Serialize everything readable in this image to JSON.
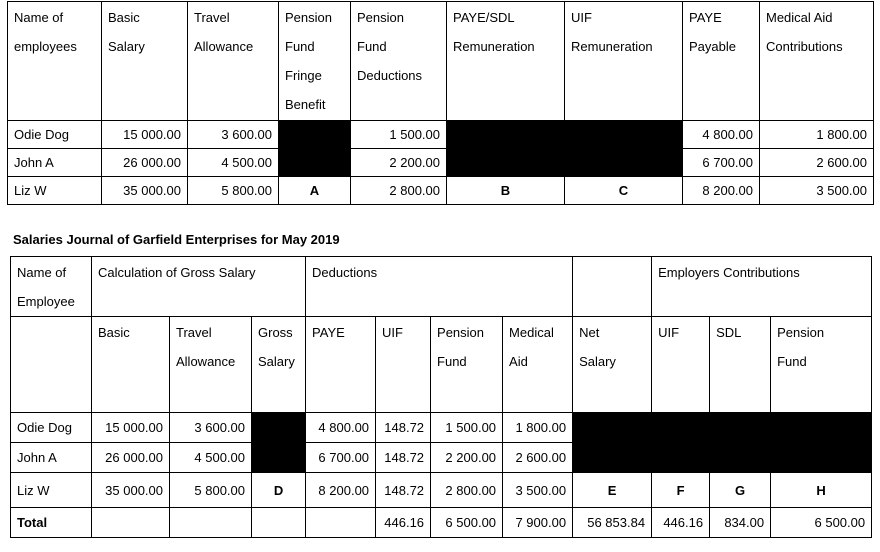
{
  "table1": {
    "headers": [
      [
        "Name of",
        "employees"
      ],
      [
        "Basic",
        "Salary"
      ],
      [
        "Travel",
        "Allowance"
      ],
      [
        "Pension",
        "Fund",
        "Fringe",
        "Benefit"
      ],
      [
        "Pension",
        "Fund",
        "Deductions"
      ],
      [
        "PAYE/SDL",
        "Remuneration"
      ],
      [
        "UIF",
        "Remuneration"
      ],
      [
        "PAYE",
        "Payable"
      ],
      [
        "Medical Aid",
        "Contributions"
      ]
    ],
    "rows": [
      {
        "name": "Odie Dog",
        "basic": "15 000.00",
        "travel": "3 600.00",
        "pff": "",
        "pfd": "1 500.00",
        "paye_sdl": "",
        "uif": "",
        "paye": "4 800.00",
        "med": "1 800.00"
      },
      {
        "name": "John A",
        "basic": "26 000.00",
        "travel": "4 500.00",
        "pff": "",
        "pfd": "2 200.00",
        "paye_sdl": "",
        "uif": "",
        "paye": "6 700.00",
        "med": "2 600.00"
      },
      {
        "name": "Liz W",
        "basic": "35 000.00",
        "travel": "5 800.00",
        "pff": "A",
        "pfd": "2 800.00",
        "paye_sdl": "B",
        "uif": "C",
        "paye": "8 200.00",
        "med": "3 500.00"
      }
    ]
  },
  "journal_title": "Salaries Journal of Garfield Enterprises for May 2019",
  "table2": {
    "group_headers": {
      "name": [
        "Name of",
        "Employee"
      ],
      "calc": "Calculation of Gross Salary",
      "deductions": "Deductions",
      "employers": "Employers Contributions"
    },
    "sub_headers": {
      "basic": [
        "Basic"
      ],
      "travel": [
        "Travel",
        "Allowance"
      ],
      "gross": [
        "Gross",
        "Salary"
      ],
      "paye": [
        "PAYE"
      ],
      "uif": [
        "UIF"
      ],
      "pension": [
        "Pension",
        "Fund"
      ],
      "medical": [
        "Medical",
        "Aid"
      ],
      "net": [
        "Net",
        "Salary"
      ],
      "er_uif": [
        "UIF"
      ],
      "er_sdl": [
        "SDL"
      ],
      "er_pension": [
        "Pension",
        "Fund"
      ]
    },
    "rows": [
      {
        "name": "Odie Dog",
        "basic": "15 000.00",
        "travel": "3 600.00",
        "gross": "",
        "paye": "4 800.00",
        "uif": "148.72",
        "pension": "1 500.00",
        "medical": "1 800.00",
        "net": "",
        "er_uif": "",
        "er_sdl": "",
        "er_pension": ""
      },
      {
        "name": "John A",
        "basic": "26 000.00",
        "travel": "4 500.00",
        "gross": "",
        "paye": "6 700.00",
        "uif": "148.72",
        "pension": "2 200.00",
        "medical": "2 600.00",
        "net": "",
        "er_uif": "",
        "er_sdl": "",
        "er_pension": ""
      },
      {
        "name": "Liz W",
        "basic": "35 000.00",
        "travel": "5 800.00",
        "gross": "D",
        "paye": "8 200.00",
        "uif": "148.72",
        "pension": "2 800.00",
        "medical": "3 500.00",
        "net": "E",
        "er_uif": "F",
        "er_sdl": "G",
        "er_pension": "H"
      }
    ],
    "total": {
      "label": "Total",
      "uif": "446.16",
      "pension": "6 500.00",
      "medical": "7 900.00",
      "net": "56 853.84",
      "er_uif": "446.16",
      "er_sdl": "834.00",
      "er_pension": "6 500.00"
    }
  }
}
